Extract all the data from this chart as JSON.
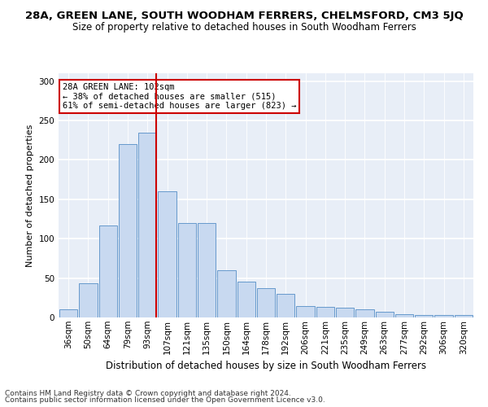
{
  "title": "28A, GREEN LANE, SOUTH WOODHAM FERRERS, CHELMSFORD, CM3 5JQ",
  "subtitle": "Size of property relative to detached houses in South Woodham Ferrers",
  "xlabel": "Distribution of detached houses by size in South Woodham Ferrers",
  "ylabel": "Number of detached properties",
  "bins": [
    "36sqm",
    "50sqm",
    "64sqm",
    "79sqm",
    "93sqm",
    "107sqm",
    "121sqm",
    "135sqm",
    "150sqm",
    "164sqm",
    "178sqm",
    "192sqm",
    "206sqm",
    "221sqm",
    "235sqm",
    "249sqm",
    "263sqm",
    "277sqm",
    "292sqm",
    "306sqm",
    "320sqm"
  ],
  "bar_heights": [
    10,
    43,
    117,
    220,
    235,
    160,
    120,
    120,
    60,
    45,
    37,
    30,
    14,
    13,
    12,
    10,
    7,
    4,
    3,
    3,
    3
  ],
  "bar_color": "#c8d9f0",
  "bar_edge_color": "#6699cc",
  "marker_bin_index": 4,
  "marker_color": "#cc0000",
  "annotation_text": "28A GREEN LANE: 102sqm\n← 38% of detached houses are smaller (515)\n61% of semi-detached houses are larger (823) →",
  "annotation_box_color": "#ffffff",
  "annotation_box_edge": "#cc0000",
  "ylim": [
    0,
    310
  ],
  "yticks": [
    0,
    50,
    100,
    150,
    200,
    250,
    300
  ],
  "background_color": "#e8eef7",
  "grid_color": "#ffffff",
  "footer_line1": "Contains HM Land Registry data © Crown copyright and database right 2024.",
  "footer_line2": "Contains public sector information licensed under the Open Government Licence v3.0.",
  "title_fontsize": 9.5,
  "subtitle_fontsize": 8.5,
  "xlabel_fontsize": 8.5,
  "ylabel_fontsize": 8,
  "tick_fontsize": 7.5,
  "annotation_fontsize": 7.5,
  "footer_fontsize": 6.5
}
